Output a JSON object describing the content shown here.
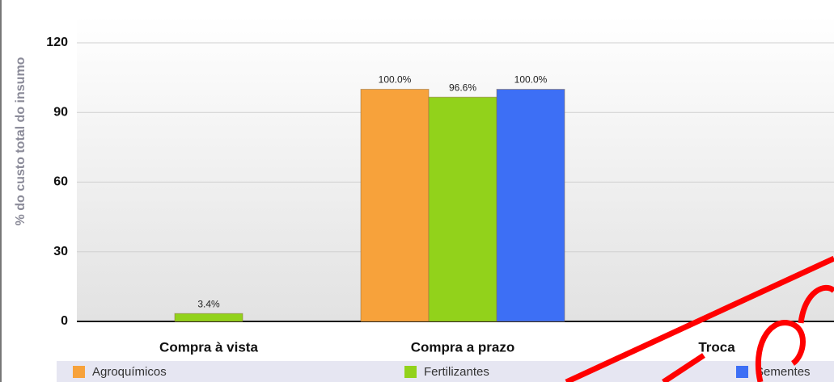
{
  "chart_data": {
    "type": "bar",
    "ylabel": "% do custo total do insumo",
    "categories": [
      "Compra à vista",
      "Compra a prazo",
      "Troca"
    ],
    "series": [
      {
        "name": "Agroquímicos",
        "color": "#f7a23b",
        "values": [
          null,
          100,
          null
        ],
        "value_labels": [
          null,
          "100.0%",
          null
        ]
      },
      {
        "name": "Fertilizantes",
        "color": "#92d21b",
        "values": [
          3.4,
          96.6,
          null
        ],
        "value_labels": [
          "3.4%",
          "96.6%",
          null
        ]
      },
      {
        "name": "Sementes",
        "color": "#3d6ff5",
        "values": [
          null,
          100,
          null
        ],
        "value_labels": [
          null,
          "100.0%",
          null
        ]
      }
    ],
    "ylim": [
      0,
      120
    ],
    "yticks": [
      0,
      30,
      60,
      90,
      120
    ],
    "grid": true
  }
}
